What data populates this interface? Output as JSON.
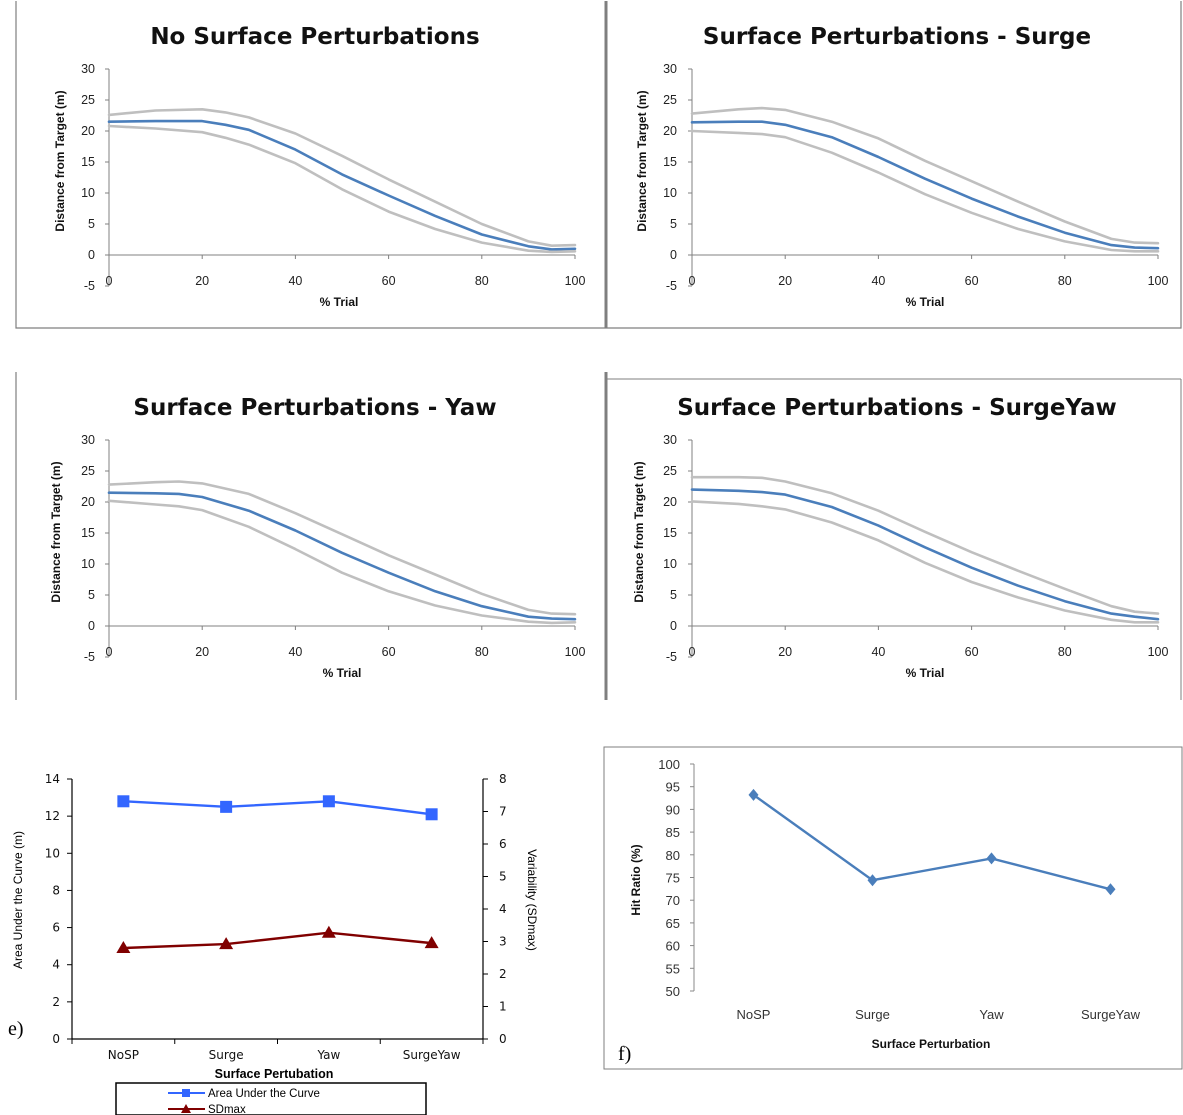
{
  "chart_data": [
    {
      "type": "line",
      "title": "No Surface Perturbations",
      "xlabel": "% Trial",
      "ylabel": "Distance from Target (m)",
      "xlim": [
        0,
        100
      ],
      "ylim": [
        -5,
        30
      ],
      "xticks": [
        "0",
        "20",
        "40",
        "60",
        "80",
        "100"
      ],
      "yticks": [
        "-5",
        "0",
        "5",
        "10",
        "15",
        "20",
        "25",
        "30"
      ],
      "colors": {
        "mean": "#4a7ebb",
        "band": "#bfbfbf"
      },
      "x": [
        0,
        10,
        20,
        25,
        30,
        40,
        50,
        60,
        70,
        80,
        90,
        95,
        100
      ],
      "series": [
        {
          "role": "mean",
          "values": [
            21.5,
            21.6,
            21.6,
            21.0,
            20.2,
            17.0,
            13.0,
            9.6,
            6.3,
            3.3,
            1.4,
            0.9,
            1.0
          ]
        },
        {
          "role": "upper",
          "values": [
            22.6,
            23.3,
            23.5,
            23.0,
            22.2,
            19.6,
            16.0,
            12.2,
            8.6,
            5.0,
            2.2,
            1.5,
            1.6
          ]
        },
        {
          "role": "lower",
          "values": [
            20.8,
            20.4,
            19.8,
            18.9,
            17.8,
            14.8,
            10.6,
            7.0,
            4.2,
            2.0,
            0.7,
            0.5,
            0.6
          ]
        }
      ]
    },
    {
      "type": "line",
      "title": "Surface Perturbations - Surge",
      "xlabel": "% Trial",
      "ylabel": "Distance from Target (m)",
      "xlim": [
        0,
        100
      ],
      "ylim": [
        -5,
        30
      ],
      "xticks": [
        "0",
        "20",
        "40",
        "60",
        "80",
        "100"
      ],
      "yticks": [
        "-5",
        "0",
        "5",
        "10",
        "15",
        "20",
        "25",
        "30"
      ],
      "colors": {
        "mean": "#4a7ebb",
        "band": "#bfbfbf"
      },
      "x": [
        0,
        10,
        15,
        20,
        30,
        40,
        50,
        60,
        70,
        80,
        90,
        95,
        100
      ],
      "series": [
        {
          "role": "mean",
          "values": [
            21.4,
            21.5,
            21.5,
            21.0,
            19.0,
            15.8,
            12.3,
            9.1,
            6.2,
            3.6,
            1.6,
            1.2,
            1.1
          ]
        },
        {
          "role": "upper",
          "values": [
            22.8,
            23.5,
            23.7,
            23.4,
            21.5,
            18.8,
            15.2,
            11.9,
            8.6,
            5.4,
            2.6,
            2.0,
            1.9
          ]
        },
        {
          "role": "lower",
          "values": [
            20.0,
            19.7,
            19.5,
            19.0,
            16.5,
            13.3,
            9.8,
            6.8,
            4.2,
            2.2,
            0.8,
            0.6,
            0.6
          ]
        }
      ]
    },
    {
      "type": "line",
      "title": "Surface Perturbations - Yaw",
      "xlabel": "% Trial",
      "ylabel": "Distance from Target (m)",
      "xlim": [
        0,
        100
      ],
      "ylim": [
        -5,
        30
      ],
      "xticks": [
        "0",
        "20",
        "40",
        "60",
        "80",
        "100"
      ],
      "yticks": [
        "-5",
        "0",
        "5",
        "10",
        "15",
        "20",
        "25",
        "30"
      ],
      "colors": {
        "mean": "#4a7ebb",
        "band": "#bfbfbf"
      },
      "x": [
        0,
        10,
        15,
        20,
        30,
        40,
        50,
        60,
        70,
        80,
        90,
        95,
        100
      ],
      "series": [
        {
          "role": "mean",
          "values": [
            21.5,
            21.4,
            21.3,
            20.8,
            18.6,
            15.4,
            11.8,
            8.6,
            5.6,
            3.2,
            1.5,
            1.2,
            1.1
          ]
        },
        {
          "role": "upper",
          "values": [
            22.8,
            23.2,
            23.3,
            23.0,
            21.3,
            18.2,
            14.8,
            11.4,
            8.3,
            5.2,
            2.6,
            2.0,
            1.9
          ]
        },
        {
          "role": "lower",
          "values": [
            20.2,
            19.6,
            19.3,
            18.7,
            16.0,
            12.4,
            8.6,
            5.6,
            3.3,
            1.7,
            0.7,
            0.5,
            0.6
          ]
        }
      ]
    },
    {
      "type": "line",
      "title": "Surface Perturbations - SurgeYaw",
      "xlabel": "% Trial",
      "ylabel": "Distance from Target (m)",
      "xlim": [
        0,
        100
      ],
      "ylim": [
        -5,
        30
      ],
      "xticks": [
        "0",
        "20",
        "40",
        "60",
        "80",
        "100"
      ],
      "yticks": [
        "-5",
        "0",
        "5",
        "10",
        "15",
        "20",
        "25",
        "30"
      ],
      "colors": {
        "mean": "#4a7ebb",
        "band": "#bfbfbf"
      },
      "x": [
        0,
        10,
        15,
        20,
        30,
        40,
        50,
        60,
        70,
        80,
        90,
        95,
        100
      ],
      "series": [
        {
          "role": "mean",
          "values": [
            22.0,
            21.8,
            21.6,
            21.2,
            19.2,
            16.2,
            12.7,
            9.4,
            6.5,
            4.0,
            2.0,
            1.5,
            1.1
          ]
        },
        {
          "role": "upper",
          "values": [
            24.0,
            24.0,
            23.9,
            23.3,
            21.4,
            18.6,
            15.2,
            11.9,
            8.9,
            6.0,
            3.2,
            2.3,
            2.0
          ]
        },
        {
          "role": "lower",
          "values": [
            20.1,
            19.7,
            19.3,
            18.8,
            16.7,
            13.8,
            10.2,
            7.1,
            4.6,
            2.5,
            1.0,
            0.6,
            0.6
          ]
        }
      ]
    },
    {
      "type": "line",
      "panel_label": "e)",
      "xlabel": "Surface Pertubation",
      "ylabel": "Area Under the Curve (m)",
      "ylabel_right": "Variability (SDmax)",
      "categories": [
        "NoSP",
        "Surge",
        "Yaw",
        "SurgeYaw"
      ],
      "ylim": [
        0,
        14
      ],
      "ylim_right": [
        0,
        8
      ],
      "yticks": [
        "0",
        "2",
        "4",
        "6",
        "8",
        "10",
        "12",
        "14"
      ],
      "yticks_right": [
        "0",
        "1",
        "2",
        "3",
        "4",
        "5",
        "6",
        "7",
        "8"
      ],
      "legend_position": "bottom",
      "series": [
        {
          "name": "Area Under the Curve",
          "axis": "left",
          "marker": "square",
          "color": "#3366ff",
          "values": [
            12.8,
            12.5,
            12.8,
            12.1
          ]
        },
        {
          "name": "SDmax",
          "axis": "right",
          "marker": "triangle",
          "color": "#800000",
          "values": [
            2.8,
            2.92,
            3.27,
            2.95
          ]
        }
      ]
    },
    {
      "type": "line",
      "panel_label": "f)",
      "xlabel": "Surface Perturbation",
      "ylabel": "Hit Ratio (%)",
      "categories": [
        "NoSP",
        "Surge",
        "Yaw",
        "SurgeYaw"
      ],
      "ylim": [
        50,
        100
      ],
      "yticks": [
        "50",
        "55",
        "60",
        "65",
        "70",
        "75",
        "80",
        "85",
        "90",
        "95",
        "100"
      ],
      "series": [
        {
          "marker": "diamond",
          "color": "#4a7ebb",
          "values": [
            93.2,
            74.4,
            79.2,
            72.4
          ]
        }
      ]
    }
  ]
}
